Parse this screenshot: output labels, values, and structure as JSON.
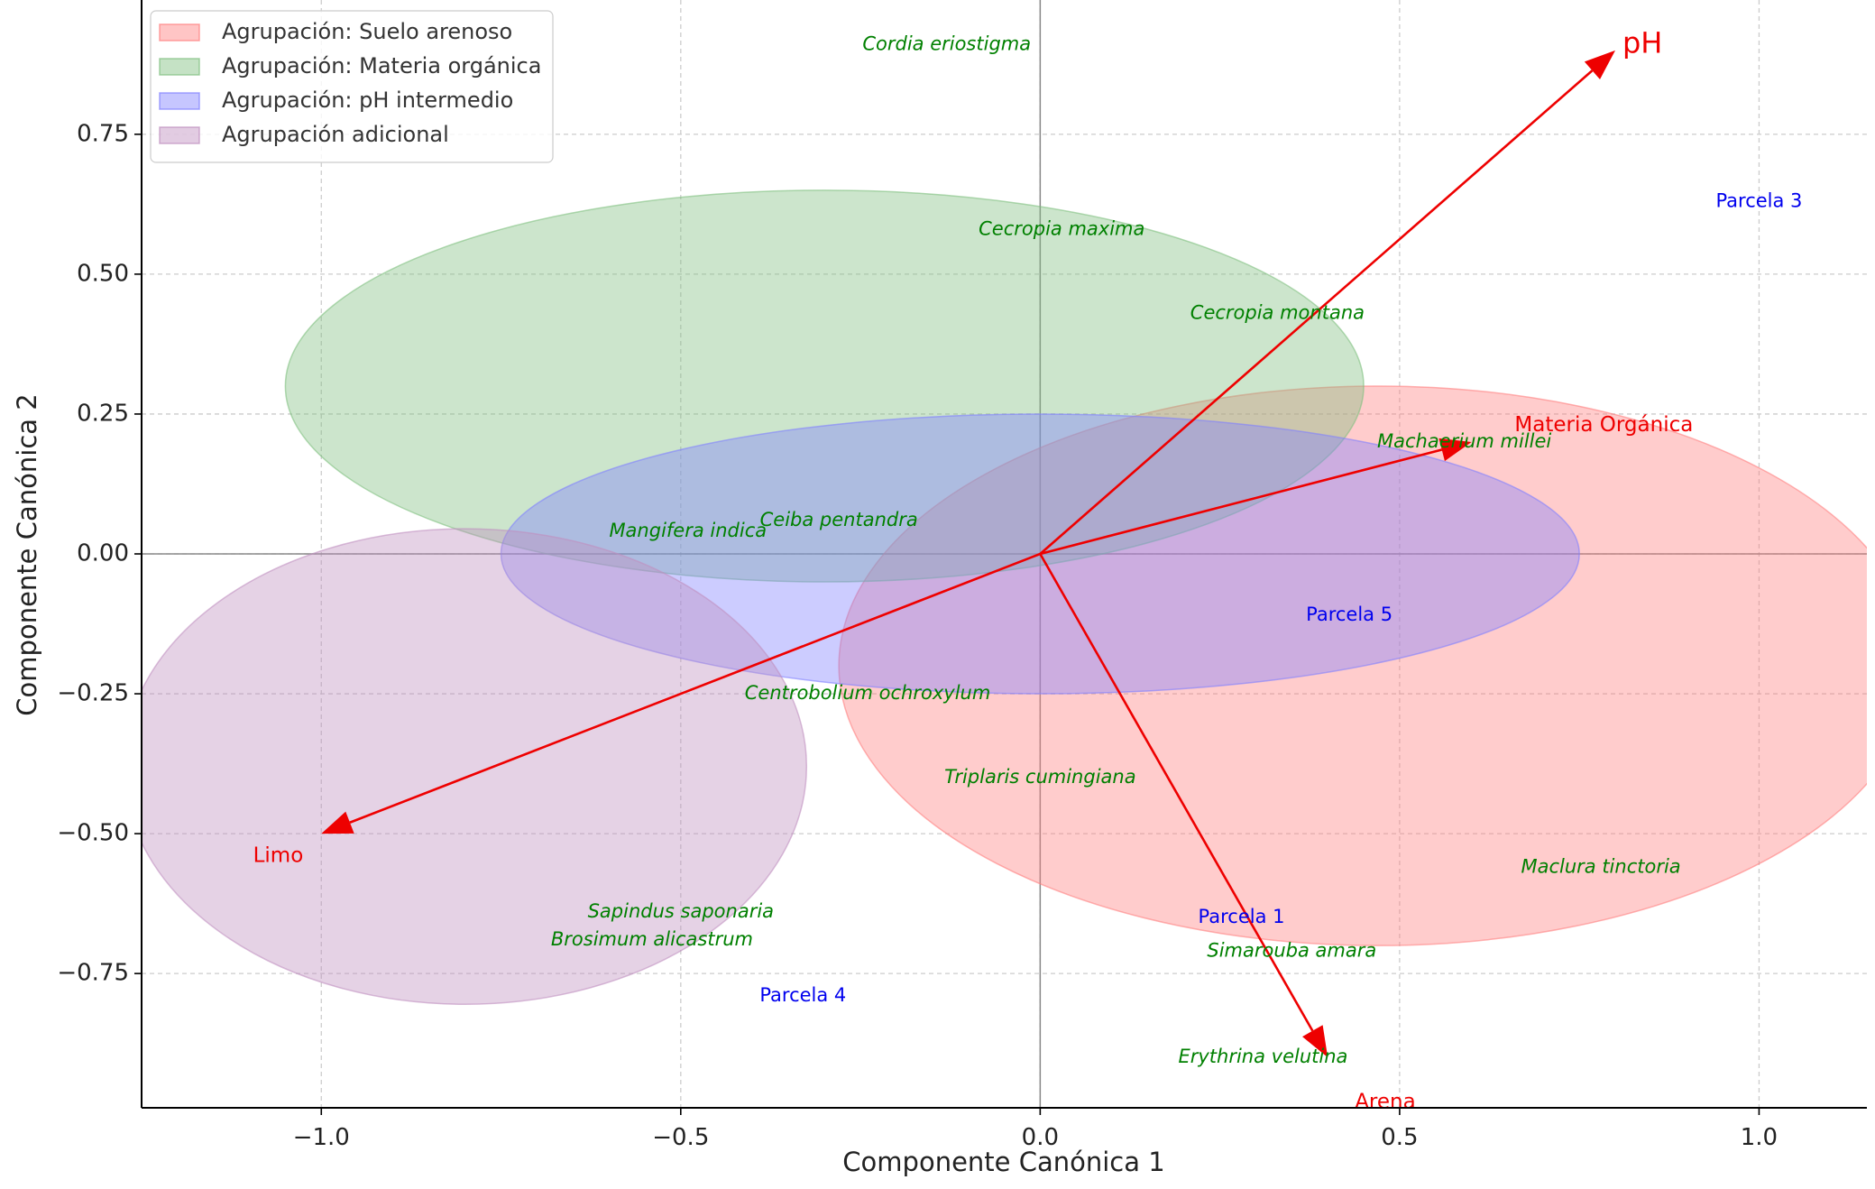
{
  "chart_data": {
    "type": "scatter",
    "title": "",
    "xlabel": "Componente Canónica 1",
    "ylabel": "Componente Canónica 2",
    "xlim": [
      -1.25,
      1.15
    ],
    "ylim": [
      -0.99,
      0.99
    ],
    "xticks": [
      {
        "value": -1.0,
        "label": "−1.0"
      },
      {
        "value": -0.5,
        "label": "−0.5"
      },
      {
        "value": 0.0,
        "label": "0.0"
      },
      {
        "value": 0.5,
        "label": "0.5"
      },
      {
        "value": 1.0,
        "label": "1.0"
      }
    ],
    "yticks": [
      {
        "value": 0.75,
        "label": "0.75"
      },
      {
        "value": 0.5,
        "label": "0.50"
      },
      {
        "value": 0.25,
        "label": "0.25"
      },
      {
        "value": 0.0,
        "label": "0.00"
      },
      {
        "value": -0.25,
        "label": "−0.25"
      },
      {
        "value": -0.5,
        "label": "−0.50"
      },
      {
        "value": -0.75,
        "label": "−0.75"
      }
    ],
    "grid": true,
    "legend_position": "top-left",
    "groups": [
      {
        "name": "Agrupación: Suelo arenoso",
        "color": "#ff7f7f",
        "center": [
          0.47,
          -0.2
        ],
        "width": 1.5,
        "height": 1.0
      },
      {
        "name": "Agrupación: Materia orgánica",
        "color": "#7fbf7f",
        "center": [
          -0.3,
          0.3
        ],
        "width": 1.5,
        "height": 0.7
      },
      {
        "name": "Agrupación: pH intermedio",
        "color": "#8080ff",
        "center": [
          0.0,
          0.0
        ],
        "width": 1.5,
        "height": 0.5
      },
      {
        "name": "Agrupación adicional",
        "color": "#bf8fbf",
        "center": [
          -0.8,
          -0.38
        ],
        "width": 0.95,
        "height": 0.85
      }
    ],
    "vectors": [
      {
        "name": "pH",
        "x": 0.8,
        "y": 0.9,
        "label_x": 0.81,
        "label_y": 0.91,
        "label_size": "large"
      },
      {
        "name": "Materia Orgánica",
        "x": 0.6,
        "y": 0.2,
        "label_x": 0.66,
        "label_y": 0.23
      },
      {
        "name": "Limo",
        "x": -1.0,
        "y": -0.5,
        "label_x": -1.06,
        "label_y": -0.54
      },
      {
        "name": "Arena",
        "x": 0.4,
        "y": -0.9,
        "label_x": 0.48,
        "label_y": -0.98
      }
    ],
    "species": [
      {
        "name": "Cordia eriostigma",
        "x": -0.13,
        "y": 0.91
      },
      {
        "name": "Cecropia maxima",
        "x": 0.03,
        "y": 0.58
      },
      {
        "name": "Cecropia montana",
        "x": 0.33,
        "y": 0.43
      },
      {
        "name": "Machaerium millei",
        "x": 0.59,
        "y": 0.2
      },
      {
        "name": "Mangifera indica",
        "x": -0.49,
        "y": 0.04
      },
      {
        "name": "Ceiba pentandra",
        "x": -0.28,
        "y": 0.06
      },
      {
        "name": "Centrobolium ochroxylum",
        "x": -0.24,
        "y": -0.25
      },
      {
        "name": "Triplaris cumingiana",
        "x": 0.0,
        "y": -0.4
      },
      {
        "name": "Maclura tinctoria",
        "x": 0.78,
        "y": -0.56
      },
      {
        "name": "Sapindus saponaria",
        "x": -0.5,
        "y": -0.64
      },
      {
        "name": "Brosimum alicastrum",
        "x": -0.54,
        "y": -0.69
      },
      {
        "name": "Simarouba amara",
        "x": 0.35,
        "y": -0.71
      },
      {
        "name": "Erythrina velutina",
        "x": 0.31,
        "y": -0.9
      }
    ],
    "plots": [
      {
        "name": "Parcela 3",
        "x": 1.0,
        "y": 0.63
      },
      {
        "name": "Parcela 5",
        "x": 0.43,
        "y": -0.11
      },
      {
        "name": "Parcela 1",
        "x": 0.28,
        "y": -0.65
      },
      {
        "name": "Parcela 4",
        "x": -0.33,
        "y": -0.79
      }
    ],
    "colors": {
      "species": "#008000",
      "plots": "#0000ee",
      "vectors": "#ee0000",
      "grid": "#cccccc",
      "zero_lines": "#888888"
    }
  }
}
